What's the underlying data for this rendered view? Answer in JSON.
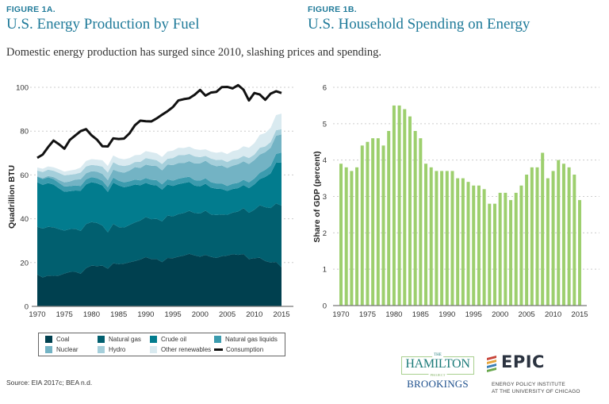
{
  "header": {
    "figure_a_label": "FIGURE 1A.",
    "figure_a_title": "U.S. Energy Production by Fuel",
    "figure_b_label": "FIGURE 1B.",
    "figure_b_title": "U.S. Household Spending on Energy",
    "subtitle": "Domestic energy production has surged since 2010, slashing prices and spending."
  },
  "colors": {
    "title_blue": "#1f7a99",
    "coal": "#00404f",
    "natural_gas": "#015f6f",
    "crude_oil": "#027c8e",
    "natural_gas_liquids": "#3b9bae",
    "nuclear": "#73b3c4",
    "hydro": "#a5cfdb",
    "other_renewables": "#d9eaf0",
    "consumption": "#111111",
    "bar_green": "#9dcf6e",
    "grid": "#cccccc"
  },
  "chart_data": [
    {
      "type": "area",
      "title": "U.S. Energy Production by Fuel",
      "xlabel": "",
      "ylabel": "Quadrillion BTU",
      "xlim": [
        1970,
        2015
      ],
      "ylim": [
        0,
        100
      ],
      "yticks": [
        0,
        20,
        40,
        60,
        80,
        100
      ],
      "xticks": [
        1970,
        1975,
        1980,
        1985,
        1990,
        1995,
        2000,
        2005,
        2010,
        2015
      ],
      "grid": "horizontal dotted",
      "legend_position": "bottom",
      "stacked": true,
      "x": [
        1970,
        1971,
        1972,
        1973,
        1974,
        1975,
        1976,
        1977,
        1978,
        1979,
        1980,
        1981,
        1982,
        1983,
        1984,
        1985,
        1986,
        1987,
        1988,
        1989,
        1990,
        1991,
        1992,
        1993,
        1994,
        1995,
        1996,
        1997,
        1998,
        1999,
        2000,
        2001,
        2002,
        2003,
        2004,
        2005,
        2006,
        2007,
        2008,
        2009,
        2010,
        2011,
        2012,
        2013,
        2014,
        2015
      ],
      "series": [
        {
          "name": "Coal",
          "values": [
            14.6,
            13.2,
            14.1,
            13.9,
            14.1,
            15.0,
            15.7,
            15.8,
            14.9,
            17.5,
            18.6,
            18.4,
            18.6,
            17.2,
            19.7,
            19.3,
            19.5,
            20.1,
            20.7,
            21.4,
            22.5,
            21.6,
            21.6,
            20.2,
            22.1,
            22.0,
            22.7,
            23.2,
            24.0,
            23.3,
            22.7,
            23.5,
            22.6,
            22.1,
            22.9,
            23.2,
            23.8,
            23.5,
            23.9,
            21.6,
            22.0,
            22.2,
            20.7,
            20.0,
            20.3,
            17.9
          ]
        },
        {
          "name": "Natural gas",
          "values": [
            21.7,
            22.3,
            22.2,
            22.2,
            21.2,
            19.6,
            19.6,
            19.6,
            19.5,
            20.1,
            19.9,
            19.7,
            18.3,
            16.6,
            18.0,
            16.9,
            16.5,
            17.1,
            17.6,
            17.8,
            18.3,
            18.2,
            18.4,
            18.6,
            19.4,
            19.1,
            19.4,
            19.4,
            19.6,
            19.3,
            19.7,
            20.2,
            19.4,
            19.6,
            19.1,
            18.6,
            19.0,
            19.8,
            21.0,
            21.1,
            22.1,
            24.0,
            24.6,
            24.9,
            26.7,
            28.1
          ]
        },
        {
          "name": "Crude oil",
          "values": [
            20.4,
            20.0,
            20.0,
            19.5,
            18.6,
            17.7,
            17.3,
            17.5,
            18.4,
            18.1,
            18.2,
            18.1,
            18.3,
            18.4,
            18.8,
            19.0,
            18.4,
            17.7,
            17.3,
            16.1,
            15.6,
            15.7,
            15.2,
            14.5,
            14.1,
            13.9,
            13.7,
            13.7,
            13.2,
            12.5,
            12.4,
            12.3,
            12.2,
            12.0,
            11.6,
            10.9,
            10.8,
            10.7,
            10.5,
            11.3,
            11.6,
            11.9,
            13.8,
            15.8,
            18.6,
            19.7
          ]
        },
        {
          "name": "Natural gas liquids",
          "values": [
            2.5,
            2.6,
            2.6,
            2.5,
            2.5,
            2.4,
            2.3,
            2.3,
            2.2,
            2.3,
            2.3,
            2.3,
            2.2,
            2.2,
            2.3,
            2.2,
            2.2,
            2.2,
            2.3,
            2.2,
            2.2,
            2.3,
            2.4,
            2.4,
            2.4,
            2.4,
            2.5,
            2.5,
            2.4,
            2.5,
            2.6,
            2.5,
            2.5,
            2.4,
            2.5,
            2.3,
            2.4,
            2.4,
            2.4,
            2.6,
            2.7,
            2.9,
            3.2,
            3.5,
            4.0,
            4.5
          ]
        },
        {
          "name": "Nuclear",
          "values": [
            0.2,
            0.4,
            0.6,
            0.9,
            1.3,
            1.9,
            2.1,
            2.7,
            3.0,
            2.8,
            2.7,
            3.0,
            3.1,
            3.2,
            3.6,
            4.1,
            4.4,
            4.9,
            5.7,
            5.7,
            6.1,
            6.4,
            6.5,
            6.4,
            6.7,
            7.1,
            7.1,
            6.6,
            7.1,
            7.6,
            7.9,
            8.0,
            8.1,
            7.9,
            8.2,
            8.2,
            8.2,
            8.5,
            8.4,
            8.4,
            8.4,
            8.3,
            8.1,
            8.2,
            8.3,
            8.3
          ]
        },
        {
          "name": "Hydro",
          "values": [
            2.6,
            2.8,
            2.9,
            2.9,
            3.2,
            3.2,
            3.1,
            2.5,
            3.1,
            3.1,
            2.9,
            2.8,
            3.3,
            3.5,
            3.4,
            3.0,
            3.1,
            2.6,
            2.3,
            2.8,
            3.0,
            3.0,
            2.6,
            2.9,
            2.7,
            3.2,
            3.6,
            3.6,
            3.3,
            3.3,
            2.8,
            2.2,
            2.7,
            2.8,
            2.7,
            2.7,
            2.9,
            2.5,
            2.5,
            2.7,
            2.5,
            3.1,
            2.6,
            2.6,
            2.5,
            2.4
          ]
        },
        {
          "name": "Other renewables",
          "values": [
            1.4,
            1.5,
            1.5,
            1.6,
            1.7,
            1.7,
            1.9,
            2.0,
            2.3,
            2.5,
            2.6,
            2.7,
            2.9,
            3.0,
            3.1,
            3.1,
            3.0,
            3.1,
            3.1,
            3.2,
            3.2,
            3.2,
            3.2,
            3.2,
            3.3,
            3.4,
            3.4,
            3.3,
            3.3,
            3.3,
            3.3,
            3.0,
            3.1,
            3.3,
            3.5,
            3.6,
            3.8,
            4.0,
            4.4,
            4.7,
            5.2,
            5.9,
            6.1,
            6.5,
            6.9,
            7.1
          ]
        }
      ],
      "line_series": {
        "name": "Consumption",
        "values": [
          67.8,
          69.3,
          72.7,
          75.7,
          74.0,
          72.0,
          76.0,
          78.0,
          80.0,
          80.9,
          78.1,
          76.1,
          73.1,
          73.0,
          76.7,
          76.4,
          76.6,
          79.0,
          82.7,
          84.8,
          84.5,
          84.4,
          85.8,
          87.5,
          89.1,
          91.0,
          94.0,
          94.6,
          95.0,
          96.6,
          98.8,
          96.2,
          97.6,
          97.9,
          100.1,
          100.2,
          99.5,
          101.0,
          98.9,
          94.0,
          97.4,
          96.7,
          94.3,
          97.1,
          98.2,
          97.4
        ]
      },
      "legend": [
        "Coal",
        "Natural gas",
        "Crude oil",
        "Natural gas liquids",
        "Nuclear",
        "Hydro",
        "Other renewables",
        "Consumption"
      ]
    },
    {
      "type": "bar",
      "title": "U.S. Household Spending on Energy",
      "xlabel": "",
      "ylabel": "Share of GDP (percent)",
      "xlim": [
        1970,
        2015
      ],
      "ylim": [
        0,
        6
      ],
      "yticks": [
        0,
        1,
        2,
        3,
        4,
        5,
        6
      ],
      "xticks": [
        1970,
        1975,
        1980,
        1985,
        1990,
        1995,
        2000,
        2005,
        2010,
        2015
      ],
      "grid": "horizontal dotted",
      "categories": [
        1970,
        1971,
        1972,
        1973,
        1974,
        1975,
        1976,
        1977,
        1978,
        1979,
        1980,
        1981,
        1982,
        1983,
        1984,
        1985,
        1986,
        1987,
        1988,
        1989,
        1990,
        1991,
        1992,
        1993,
        1994,
        1995,
        1996,
        1997,
        1998,
        1999,
        2000,
        2001,
        2002,
        2003,
        2004,
        2005,
        2006,
        2007,
        2008,
        2009,
        2010,
        2011,
        2012,
        2013,
        2014,
        2015
      ],
      "values": [
        3.9,
        3.8,
        3.7,
        3.8,
        4.4,
        4.5,
        4.6,
        4.6,
        4.4,
        4.8,
        5.5,
        5.5,
        5.4,
        5.2,
        4.8,
        4.6,
        3.9,
        3.8,
        3.7,
        3.7,
        3.7,
        3.7,
        3.5,
        3.5,
        3.4,
        3.3,
        3.3,
        3.2,
        2.8,
        2.8,
        3.1,
        3.1,
        2.9,
        3.1,
        3.3,
        3.6,
        3.8,
        3.8,
        4.2,
        3.5,
        3.7,
        4.0,
        3.9,
        3.8,
        3.6,
        2.9
      ]
    }
  ],
  "legend": {
    "items": [
      {
        "label": "Coal",
        "color_key": "coal"
      },
      {
        "label": "Natural gas",
        "color_key": "natural_gas"
      },
      {
        "label": "Crude oil",
        "color_key": "crude_oil"
      },
      {
        "label": "Natural gas liquids",
        "color_key": "natural_gas_liquids"
      },
      {
        "label": "Nuclear",
        "color_key": "nuclear"
      },
      {
        "label": "Hydro",
        "color_key": "hydro"
      },
      {
        "label": "Other renewables",
        "color_key": "other_renewables"
      },
      {
        "label": "Consumption",
        "color_key": "consumption"
      }
    ]
  },
  "footer": {
    "source": "Source: EIA 2017c; BEA n.d.",
    "hamilton_the": "THE",
    "hamilton_name": "HAMILTON",
    "hamilton_project": "PROJECT",
    "brookings": "BROOKINGS",
    "epic_name": "EPIC",
    "epic_line1": "ENERGY POLICY INSTITUTE",
    "epic_line2": "AT THE UNIVERSITY OF CHICAGO"
  }
}
